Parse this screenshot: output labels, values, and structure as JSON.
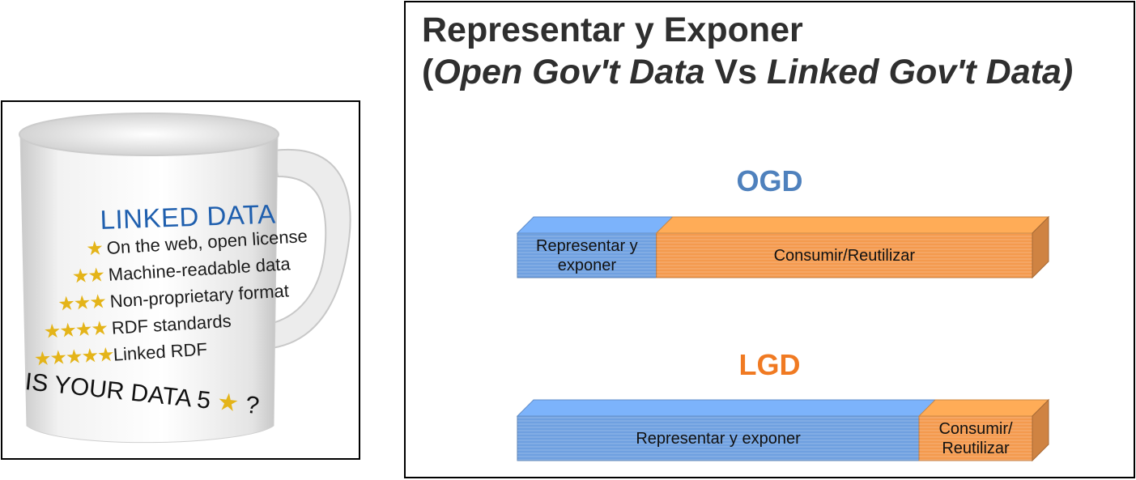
{
  "mug": {
    "title": "LINKED DATA",
    "rows": [
      {
        "stars": 1,
        "text": "On the web, open license"
      },
      {
        "stars": 2,
        "text": "Machine-readable data"
      },
      {
        "stars": 3,
        "text": "Non-proprietary format"
      },
      {
        "stars": 4,
        "text": "RDF standards"
      },
      {
        "stars": 5,
        "text": "Linked RDF"
      }
    ],
    "question_prefix": "IS YOUR DATA 5 ",
    "question_suffix": " ?",
    "star_color": "#e4b419",
    "title_color": "#1f5fae"
  },
  "slide": {
    "title_line1": "Representar y Exponer",
    "title_open_paren": "(",
    "title_open": "Open Gov't Data",
    "title_vs": " Vs ",
    "title_linked": "Linked Gov't Data",
    "title_close_paren": ")",
    "ogd_label": "OGD",
    "lgd_label": "LGD",
    "ogd_bar": {
      "segments": [
        {
          "label": "Representar y exponer",
          "share": 0.27,
          "color": "#6fa0e0"
        },
        {
          "label": "Consumir/Reutilizar",
          "share": 0.73,
          "color": "#f49a4e"
        }
      ]
    },
    "lgd_bar": {
      "segments": [
        {
          "label": "Representar y exponer",
          "share": 0.78,
          "color": "#6fa0e0"
        },
        {
          "label": "Consumir/ Reutilizar",
          "share": 0.22,
          "color": "#f49a4e"
        }
      ]
    },
    "ogd_color": "#4f81bd",
    "lgd_color": "#f07a22"
  }
}
